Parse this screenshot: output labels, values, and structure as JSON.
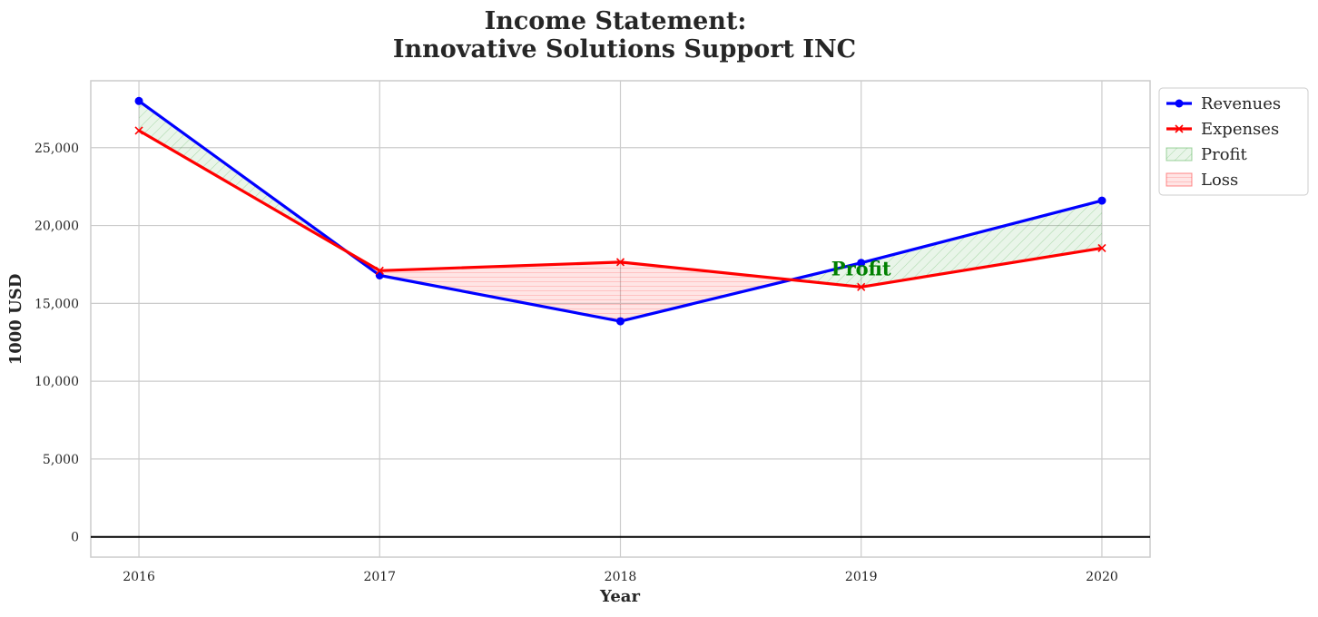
{
  "chart_data": {
    "type": "line",
    "title": "Income Statement:",
    "subtitle": "Innovative Solutions Support INC",
    "xlabel": "Year",
    "ylabel": "1000 USD",
    "categories": [
      "2016",
      "2017",
      "2018",
      "2019",
      "2020"
    ],
    "series": [
      {
        "name": "Revenues",
        "values": [
          28000,
          16800,
          13850,
          17600,
          21600
        ],
        "color": "#0000ff",
        "marker": "circle"
      },
      {
        "name": "Expenses",
        "values": [
          26100,
          17100,
          17650,
          16050,
          18550
        ],
        "color": "#ff0000",
        "marker": "x"
      }
    ],
    "fills": [
      {
        "name": "Profit",
        "color": "#2ca02c",
        "condition": "revenues >= expenses",
        "hatch": "diagonal"
      },
      {
        "name": "Loss",
        "color": "#ff0000",
        "condition": "revenues < expenses",
        "hatch": "horizontal"
      }
    ],
    "annotations": [
      {
        "text": "Profit",
        "x": "2019",
        "y": 16800,
        "color": "#008000"
      }
    ],
    "yticks": [
      0,
      5000,
      10000,
      15000,
      20000,
      25000
    ],
    "ytick_labels": [
      "0",
      "5,000",
      "10,000",
      "15,000",
      "20,000",
      "25,000"
    ],
    "ylim": [
      -1300,
      29300
    ],
    "xlim": [
      -0.2,
      4.2
    ],
    "grid": true,
    "zero_line": true,
    "legend_position": "outside-top-right",
    "legend": [
      "Revenues",
      "Expenses",
      "Profit",
      "Loss"
    ]
  }
}
